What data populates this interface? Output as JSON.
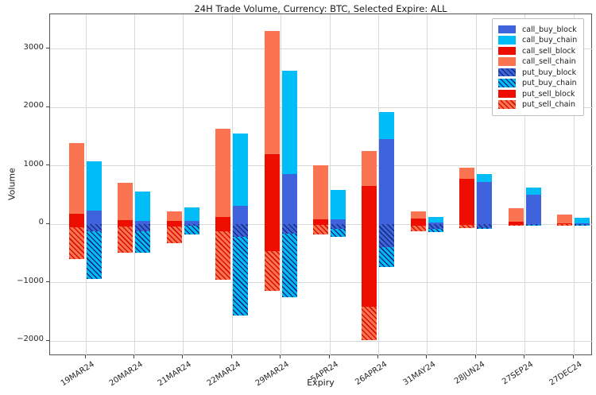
{
  "chart_data": {
    "type": "bar",
    "title": "24H Trade Volume, Currency: BTC, Selected Expire: ALL",
    "xlabel": "Expiry",
    "ylabel": "Volume",
    "categories": [
      "19MAR24",
      "20MAR24",
      "21MAR24",
      "22MAR24",
      "29MAR24",
      "5APR24",
      "26APR24",
      "31MAY24",
      "28JUN24",
      "27SEP24",
      "27DEC24"
    ],
    "yticks": [
      3000,
      2000,
      1000,
      0,
      -1000,
      -2000
    ],
    "ytick_labels": [
      "3000",
      "2000",
      "1000",
      "0",
      "−1000",
      "−2000"
    ],
    "ylim": [
      -2260,
      3590
    ],
    "grid": true,
    "legend_position": "upper right",
    "series": [
      {
        "name": "call_sell_block",
        "style": "red",
        "values": [
          170,
          60,
          50,
          115,
          1200,
          80,
          650,
          90,
          780,
          45,
          10
        ]
      },
      {
        "name": "call_sell_chain",
        "style": "coral",
        "values": [
          1220,
          650,
          170,
          1515,
          2100,
          920,
          600,
          120,
          190,
          225,
          155
        ]
      },
      {
        "name": "put_sell_block",
        "style": "red",
        "values": [
          -50,
          -45,
          -40,
          -120,
          -460,
          -15,
          -1410,
          -35,
          -20,
          -15,
          -5
        ]
      },
      {
        "name": "put_sell_chain",
        "style": "coral-hatch",
        "values": [
          -550,
          -445,
          -290,
          -830,
          -690,
          -170,
          -580,
          -95,
          -50,
          -10,
          -25
        ]
      },
      {
        "name": "call_buy_block",
        "style": "royal",
        "values": [
          235,
          55,
          55,
          315,
          855,
          80,
          1460,
          25,
          720,
          505,
          15
        ]
      },
      {
        "name": "call_buy_chain",
        "style": "sky",
        "values": [
          840,
          505,
          230,
          1235,
          1775,
          505,
          460,
          95,
          135,
          120,
          95
        ]
      },
      {
        "name": "put_buy_block",
        "style": "royal-hatch",
        "values": [
          -120,
          -120,
          -35,
          -215,
          -165,
          -90,
          -395,
          -90,
          -70,
          -10,
          -10
        ]
      },
      {
        "name": "put_buy_chain",
        "style": "sky-hatch",
        "values": [
          -820,
          -370,
          -145,
          -1355,
          -1085,
          -125,
          -340,
          -45,
          -5,
          -5,
          -15
        ]
      }
    ],
    "legend": [
      {
        "label": "call_buy_block",
        "style": "royal"
      },
      {
        "label": "call_buy_chain",
        "style": "sky"
      },
      {
        "label": "call_sell_block",
        "style": "red"
      },
      {
        "label": "call_sell_chain",
        "style": "coral"
      },
      {
        "label": "put_buy_block",
        "style": "royal-hatch"
      },
      {
        "label": "put_buy_chain",
        "style": "sky-hatch"
      },
      {
        "label": "put_sell_block",
        "style": "red"
      },
      {
        "label": "put_sell_chain",
        "style": "coral-hatch"
      }
    ],
    "colors": {
      "royal": "#3E63DC",
      "sky": "#00BDF8",
      "red": "#EE0E00",
      "coral": "#FB7452",
      "hatch_dark_blue": "#16307F",
      "hatch_red": "#D80E00",
      "grid": "#D8D8D8",
      "spine": "#555555",
      "text": "#1A1A1A"
    }
  }
}
